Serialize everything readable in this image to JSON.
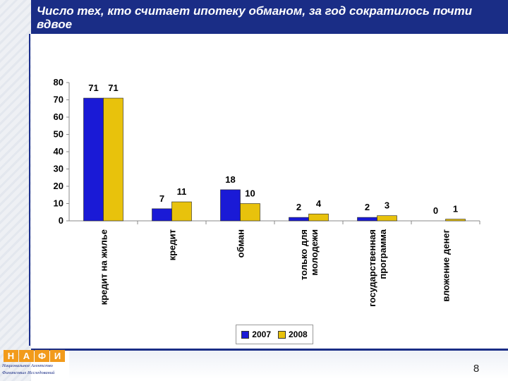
{
  "title": "Число тех, кто считает ипотеку обманом, за год сократилось почти вдвое",
  "page_number": "8",
  "logo": {
    "letters": [
      "Н",
      "А",
      "Ф",
      "И"
    ],
    "line1": "Национальное Агентство",
    "line2": "Финансовых Исследований"
  },
  "colors": {
    "series_2007": "#1a1ad6",
    "series_2008": "#e8c20c",
    "header": "#1a2d86"
  },
  "chart_data": {
    "type": "bar",
    "categories": [
      "кредит на жилье",
      "кредит",
      "обман",
      "только для молодежи",
      "государственная программа",
      "вложение денег"
    ],
    "series": [
      {
        "name": "2007",
        "values": [
          71,
          7,
          18,
          2,
          2,
          0
        ]
      },
      {
        "name": "2008",
        "values": [
          71,
          11,
          10,
          4,
          3,
          1
        ]
      }
    ],
    "ylim": [
      0,
      80
    ],
    "yticks": [
      0,
      10,
      20,
      30,
      40,
      50,
      60,
      70,
      80
    ],
    "grid": false,
    "legend_position": "bottom"
  }
}
